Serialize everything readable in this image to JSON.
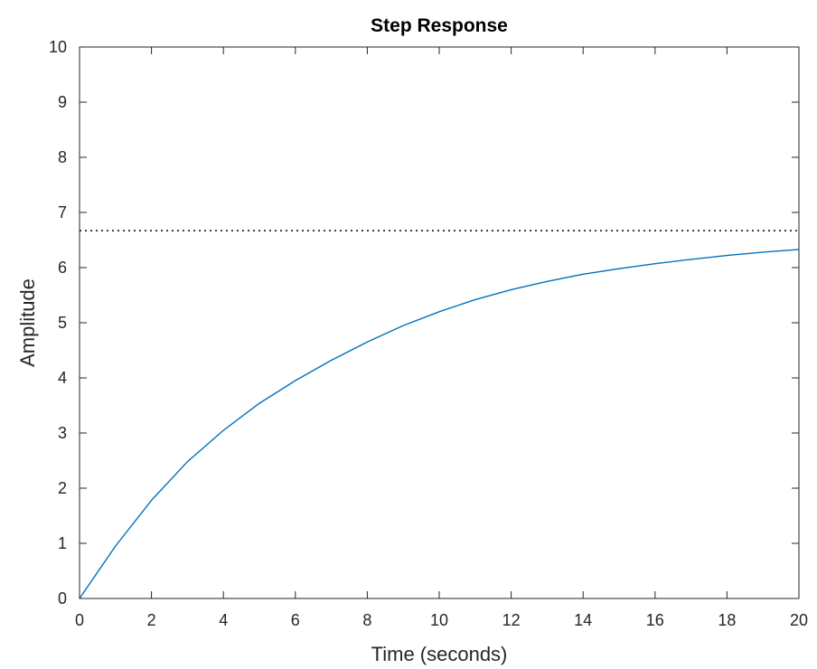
{
  "chart_data": {
    "type": "line",
    "title": "Step Response",
    "xlabel": "Time (seconds)",
    "ylabel": "Amplitude",
    "xlim": [
      0,
      20
    ],
    "ylim": [
      0,
      10
    ],
    "xticks": [
      "0",
      "2",
      "4",
      "6",
      "8",
      "10",
      "12",
      "14",
      "16",
      "18",
      "20"
    ],
    "yticks": [
      "0",
      "1",
      "2",
      "3",
      "4",
      "5",
      "6",
      "7",
      "8",
      "9",
      "10"
    ],
    "grid": false,
    "legend": "none",
    "steady_state": 6.67,
    "series": [
      {
        "color": "#0072bd",
        "x": [
          0,
          1,
          2,
          3,
          4,
          5,
          6,
          7,
          8,
          9,
          10,
          11,
          12,
          13,
          14,
          15,
          16,
          17,
          18,
          19,
          20
        ],
        "y": [
          0,
          0.95,
          1.78,
          2.48,
          3.05,
          3.54,
          3.95,
          4.32,
          4.65,
          4.95,
          5.2,
          5.42,
          5.6,
          5.75,
          5.88,
          5.98,
          6.07,
          6.15,
          6.22,
          6.28,
          6.33
        ]
      }
    ],
    "reference_line_style": "dotted",
    "reference_line_color": "#000000"
  }
}
